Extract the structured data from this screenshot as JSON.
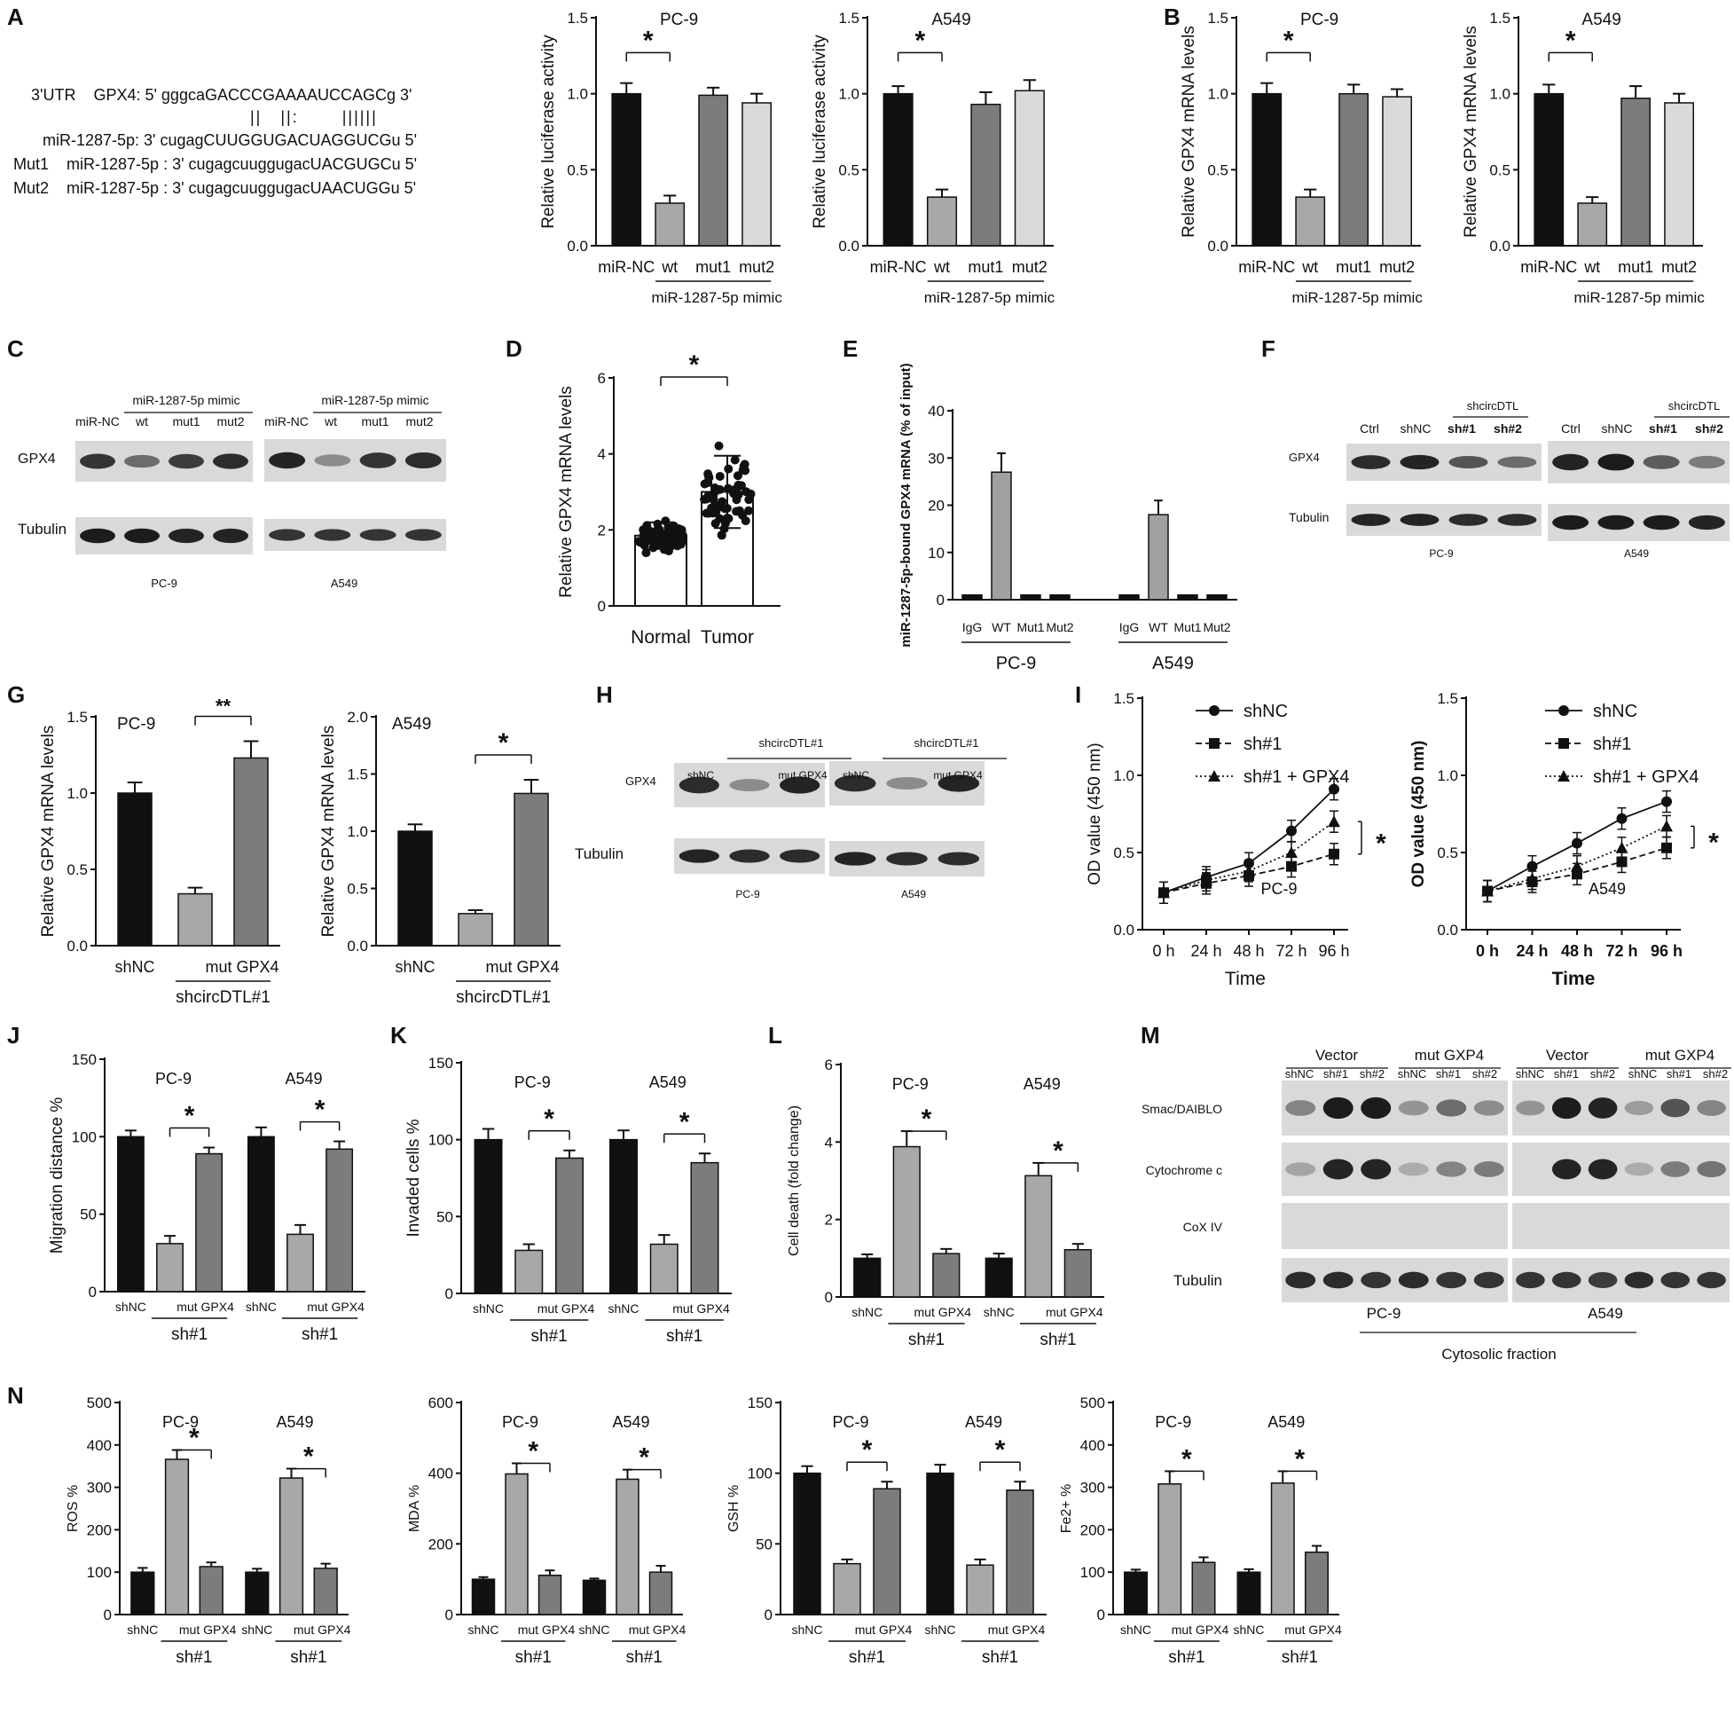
{
  "panels": {
    "A": "A",
    "B": "B",
    "C": "C",
    "D": "D",
    "E": "E",
    "F": "F",
    "G": "G",
    "H": "H",
    "I": "I",
    "J": "J",
    "K": "K",
    "L": "L",
    "M": "M",
    "N": "N"
  },
  "sequence": {
    "line1": "3'UTR    GPX4: 5' gggcaGACCCGAAAAUCCAGCg 3'",
    "pairs": "||   ||:       ||||||",
    "line2": "miR-1287-5p: 3' cugagCUUGGUGACUAGGUCGu 5'",
    "line3": "Mut1    miR-1287-5p : 3' cugagcuuggugacUACGUGCu 5'",
    "line4": "Mut2    miR-1287-5p : 3' cugagcuuggugacUAACUGGu 5'"
  },
  "blots": {
    "C": {
      "group": "miR-1287-5p mimic",
      "lanes": [
        "miR-NC",
        "wt",
        "mut1",
        "mut2"
      ],
      "rows": [
        "GPX4",
        "Tubulin"
      ],
      "cells": [
        "PC-9",
        "A549"
      ]
    },
    "F": {
      "group": "shcircDTL",
      "lanes": [
        "Ctrl",
        "shNC",
        "sh#1",
        "sh#2"
      ],
      "rows": [
        "GPX4",
        "Tubulin"
      ],
      "cells": [
        "PC-9",
        "A549"
      ]
    },
    "H": {
      "group": "shcircDTL#1",
      "lanes": [
        "shNC",
        "mut GPX4"
      ],
      "rows": [
        "GPX4",
        "Tubulin"
      ],
      "cells": [
        "PC-9",
        "A549"
      ]
    },
    "M": {
      "groups": [
        "Vector",
        "mut GXP4"
      ],
      "lanes": [
        "shNC",
        "sh#1",
        "sh#2"
      ],
      "rows": [
        "Smac/DAIBLO",
        "Cytochrome c",
        "CoX IV",
        "Tubulin"
      ],
      "cells": [
        "PC-9",
        "A549"
      ],
      "fraction": "Cytosolic fraction"
    }
  },
  "chart_data": [
    {
      "id": "A1",
      "type": "bar",
      "title": "PC-9",
      "ylabel": "Relative luciferase activity",
      "ylim": [
        0,
        1.5
      ],
      "yticks": [
        "0.0",
        "0.5",
        "1.0",
        "1.5"
      ],
      "categories": [
        "miR-NC",
        "wt",
        "mut1",
        "mut2"
      ],
      "values": [
        1.0,
        0.28,
        0.99,
        0.94
      ],
      "errors": [
        0.07,
        0.05,
        0.05,
        0.06
      ],
      "group_label": "miR-1287-5p mimic",
      "sig": "*"
    },
    {
      "id": "A2",
      "type": "bar",
      "title": "A549",
      "ylabel": "Relative luciferase activity",
      "ylim": [
        0,
        1.5
      ],
      "yticks": [
        "0.0",
        "0.5",
        "1.0",
        "1.5"
      ],
      "categories": [
        "miR-NC",
        "wt",
        "mut1",
        "mut2"
      ],
      "values": [
        1.0,
        0.32,
        0.93,
        1.02
      ],
      "errors": [
        0.05,
        0.05,
        0.08,
        0.07
      ],
      "group_label": "miR-1287-5p mimic",
      "sig": "*"
    },
    {
      "id": "B1",
      "type": "bar",
      "title": "PC-9",
      "ylabel": "Relative GPX4 mRNA levels",
      "ylim": [
        0,
        1.5
      ],
      "yticks": [
        "0.0",
        "0.5",
        "1.0",
        "1.5"
      ],
      "categories": [
        "miR-NC",
        "wt",
        "mut1",
        "mut2"
      ],
      "values": [
        1.0,
        0.32,
        1.0,
        0.98
      ],
      "errors": [
        0.07,
        0.05,
        0.06,
        0.05
      ],
      "group_label": "miR-1287-5p mimic",
      "sig": "*"
    },
    {
      "id": "B2",
      "type": "bar",
      "title": "A549",
      "ylabel": "Relative GPX4 mRNA levels",
      "ylim": [
        0,
        1.5
      ],
      "yticks": [
        "0.0",
        "0.5",
        "1.0",
        "1.5"
      ],
      "categories": [
        "miR-NC",
        "wt",
        "mut1",
        "mut2"
      ],
      "values": [
        1.0,
        0.28,
        0.97,
        0.94
      ],
      "errors": [
        0.06,
        0.04,
        0.08,
        0.06
      ],
      "group_label": "miR-1287-5p mimic",
      "sig": "*"
    },
    {
      "id": "D",
      "type": "scatter",
      "ylabel": "Relative GPX4  mRNA levels",
      "ylim": [
        0,
        6
      ],
      "yticks": [
        "0",
        "2",
        "4",
        "6"
      ],
      "categories": [
        "Normal",
        "Tumor"
      ],
      "means": [
        1.85,
        3.0
      ],
      "sd": [
        0.35,
        0.95
      ],
      "sig": "*"
    },
    {
      "id": "E",
      "type": "bar",
      "ylabel": "miR-1287-5p-bound GPX4 mRNA (% of input)",
      "ylim": [
        0,
        40
      ],
      "yticks": [
        "0",
        "10",
        "20",
        "30",
        "40"
      ],
      "groups": [
        "PC-9",
        "A549"
      ],
      "categories": [
        "IgG",
        "WT",
        "Mut1",
        "Mut2"
      ],
      "values": [
        [
          1,
          27,
          1,
          1
        ],
        [
          1,
          18,
          1,
          1
        ]
      ],
      "errors": [
        [
          0,
          4,
          0,
          0
        ],
        [
          0,
          3,
          0,
          0
        ]
      ]
    },
    {
      "id": "G1",
      "type": "bar",
      "title": "PC-9",
      "ylabel": "Relative GPX4  mRNA levels",
      "ylim": [
        0,
        1.5
      ],
      "yticks": [
        "0.0",
        "0.5",
        "1.0",
        "1.5"
      ],
      "categories": [
        "shNC",
        "",
        "mut GPX4"
      ],
      "values": [
        1.0,
        0.34,
        1.23
      ],
      "errors": [
        0.07,
        0.04,
        0.11
      ],
      "group_label": "shcircDTL#1",
      "sig": "**"
    },
    {
      "id": "G2",
      "type": "bar",
      "title": "A549",
      "ylabel": "Relative GPX4  mRNA levels",
      "ylim": [
        0,
        2.0
      ],
      "yticks": [
        "0.0",
        "0.5",
        "1.0",
        "1.5",
        "2.0"
      ],
      "categories": [
        "shNC",
        "",
        "mut GPX4"
      ],
      "values": [
        1.0,
        0.28,
        1.33
      ],
      "errors": [
        0.06,
        0.03,
        0.12
      ],
      "group_label": "shcircDTL#1",
      "sig": "*"
    },
    {
      "id": "I1",
      "type": "line",
      "title": "PC-9",
      "xlabel": "Time",
      "ylabel": "OD value (450 nm)",
      "ylim": [
        0,
        1.5
      ],
      "yticks": [
        "0.0",
        "0.5",
        "1.0",
        "1.5"
      ],
      "x": [
        "0 h",
        "24 h",
        "48 h",
        "72 h",
        "96 h"
      ],
      "series": [
        {
          "name": "shNC",
          "values": [
            0.24,
            0.34,
            0.43,
            0.64,
            0.91
          ]
        },
        {
          "name": "sh#1",
          "values": [
            0.24,
            0.3,
            0.35,
            0.41,
            0.49
          ]
        },
        {
          "name": "sh#1 + GPX4",
          "values": [
            0.24,
            0.32,
            0.38,
            0.5,
            0.7
          ]
        }
      ],
      "sig": "*"
    },
    {
      "id": "I2",
      "type": "line",
      "title": "A549",
      "xlabel": "Time",
      "ylabel": "OD value (450 nm)",
      "ylim": [
        0,
        1.5
      ],
      "yticks": [
        "0.0",
        "0.5",
        "1.0",
        "1.5"
      ],
      "x": [
        "0 h",
        "24 h",
        "48 h",
        "72 h",
        "96 h"
      ],
      "series": [
        {
          "name": "shNC",
          "values": [
            0.25,
            0.41,
            0.56,
            0.72,
            0.83
          ]
        },
        {
          "name": "sh#1",
          "values": [
            0.25,
            0.31,
            0.36,
            0.44,
            0.53
          ]
        },
        {
          "name": "sh#1 + GPX4",
          "values": [
            0.25,
            0.33,
            0.41,
            0.53,
            0.67
          ]
        }
      ],
      "sig": "*"
    },
    {
      "id": "J",
      "type": "bar",
      "ylabel": "Migration distance %",
      "ylim": [
        0,
        150
      ],
      "yticks": [
        "0",
        "50",
        "100",
        "150"
      ],
      "groups": [
        "PC-9",
        "A549"
      ],
      "categories": [
        "shNC",
        "",
        "mut GPX4"
      ],
      "values": [
        [
          100,
          31,
          89
        ],
        [
          100,
          37,
          92
        ]
      ],
      "errors": [
        [
          4,
          5,
          4
        ],
        [
          6,
          6,
          5
        ]
      ],
      "group_label": "sh#1",
      "sig": "*"
    },
    {
      "id": "K",
      "type": "bar",
      "ylabel": "Invaded cells %",
      "ylim": [
        0,
        150
      ],
      "yticks": [
        "0",
        "50",
        "100",
        "150"
      ],
      "groups": [
        "PC-9",
        "A549"
      ],
      "categories": [
        "shNC",
        "",
        "mut GPX4"
      ],
      "values": [
        [
          100,
          28,
          88
        ],
        [
          100,
          32,
          85
        ]
      ],
      "errors": [
        [
          7,
          4,
          5
        ],
        [
          6,
          6,
          6
        ]
      ],
      "group_label": "sh#1",
      "sig": "*"
    },
    {
      "id": "L",
      "type": "bar",
      "ylabel": "Cell death (fold change)",
      "ylim": [
        0,
        6
      ],
      "yticks": [
        "0",
        "2",
        "4",
        "6"
      ],
      "groups": [
        "PC-9",
        "A549"
      ],
      "categories": [
        "shNC",
        "",
        "mut GPX4"
      ],
      "values": [
        [
          1.0,
          3.88,
          1.12
        ],
        [
          1.0,
          3.13,
          1.22
        ]
      ],
      "errors": [
        [
          0.1,
          0.4,
          0.12
        ],
        [
          0.12,
          0.33,
          0.15
        ]
      ],
      "group_label": "sh#1",
      "sig": "*"
    },
    {
      "id": "N1",
      "type": "bar",
      "ylabel": "ROS %",
      "ylim": [
        0,
        500
      ],
      "yticks": [
        "0",
        "100",
        "200",
        "300",
        "400",
        "500"
      ],
      "groups": [
        "PC-9",
        "A549"
      ],
      "categories": [
        "shNC",
        "",
        "mut GPX4"
      ],
      "values": [
        [
          100,
          366,
          113
        ],
        [
          100,
          322,
          109
        ]
      ],
      "errors": [
        [
          10,
          22,
          10
        ],
        [
          8,
          22,
          11
        ]
      ],
      "group_label": "sh#1",
      "sig": "*"
    },
    {
      "id": "N2",
      "type": "bar",
      "ylabel": "MDA %",
      "ylim": [
        0,
        600
      ],
      "yticks": [
        "0",
        "200",
        "400",
        "600"
      ],
      "groups": [
        "PC-9",
        "A549"
      ],
      "categories": [
        "shNC",
        "",
        "mut GPX4"
      ],
      "values": [
        [
          100,
          398,
          111
        ],
        [
          97,
          383,
          120
        ]
      ],
      "errors": [
        [
          6,
          30,
          14
        ],
        [
          5,
          27,
          18
        ]
      ],
      "group_label": "sh#1",
      "sig": "*"
    },
    {
      "id": "N3",
      "type": "bar",
      "ylabel": "GSH %",
      "ylim": [
        0,
        150
      ],
      "yticks": [
        "0",
        "50",
        "100",
        "150"
      ],
      "groups": [
        "PC-9",
        "A549"
      ],
      "categories": [
        "shNC",
        "",
        "mut GPX4"
      ],
      "values": [
        [
          100,
          36,
          89
        ],
        [
          100,
          35,
          88
        ]
      ],
      "errors": [
        [
          5,
          3,
          5
        ],
        [
          6,
          4,
          6
        ]
      ],
      "group_label": "sh#1",
      "sig": "*"
    },
    {
      "id": "N4",
      "type": "bar",
      "ylabel": "Fe2+ %",
      "ylim": [
        0,
        500
      ],
      "yticks": [
        "0",
        "100",
        "200",
        "300",
        "400",
        "500"
      ],
      "groups": [
        "PC-9",
        "A549"
      ],
      "categories": [
        "shNC",
        "",
        "mut GPX4"
      ],
      "values": [
        [
          100,
          308,
          123
        ],
        [
          100,
          310,
          147
        ]
      ],
      "errors": [
        [
          6,
          30,
          12
        ],
        [
          7,
          28,
          15
        ]
      ],
      "group_label": "sh#1",
      "sig": "*"
    }
  ]
}
